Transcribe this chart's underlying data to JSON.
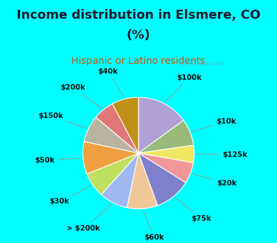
{
  "title_line1": "Income distribution in Elsmere, CO",
  "title_line2": "(%)",
  "subtitle": "Hispanic or Latino residents",
  "bg_color": "#00FFFF",
  "chart_bg_color": "#e8f5f0",
  "labels": [
    "$100k",
    "$10k",
    "$125k",
    "$20k",
    "$75k",
    "$60k",
    "> $200k",
    "$30k",
    "$50k",
    "$150k",
    "$200k",
    "$40k"
  ],
  "sizes": [
    13.5,
    7.0,
    4.5,
    5.5,
    9.5,
    8.0,
    7.5,
    6.5,
    8.5,
    7.0,
    5.5,
    7.0
  ],
  "colors": [
    "#b0a0d4",
    "#9aba7c",
    "#f0e860",
    "#f09898",
    "#8080cc",
    "#f0c898",
    "#a0b8f0",
    "#c0e060",
    "#f0a040",
    "#b8b4a0",
    "#e07878",
    "#c09018"
  ],
  "title_fontsize": 13,
  "subtitle_fontsize": 10,
  "label_fontsize": 7.5,
  "watermark": "  City-Data.com",
  "title_color": "#1a1a2e",
  "subtitle_color": "#cc5500"
}
